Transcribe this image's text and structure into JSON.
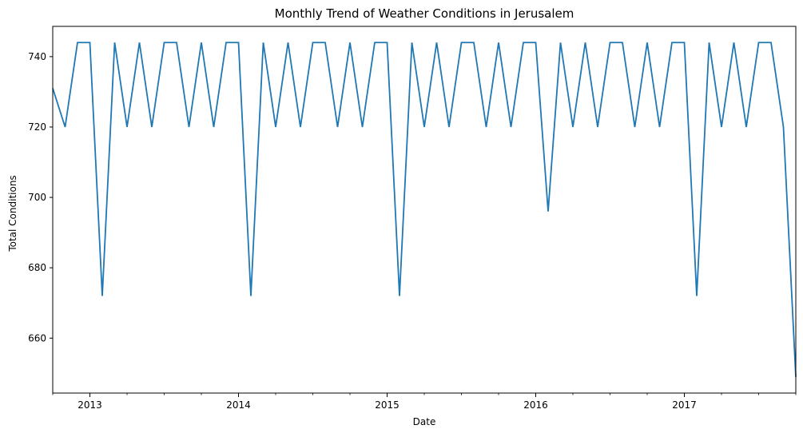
{
  "chart_data": {
    "type": "line",
    "title": "Monthly Trend of Weather Conditions in Jerusalem",
    "xlabel": "Date",
    "ylabel": "Total Conditions",
    "x_major_ticks": [
      "2013",
      "2014",
      "2015",
      "2016",
      "2017"
    ],
    "y_ticks": [
      660,
      680,
      700,
      720,
      740
    ],
    "ylim": [
      644.4,
      748.6
    ],
    "xlim": [
      "2012-10",
      "2017-10"
    ],
    "grid": false,
    "legend": "none",
    "colors": {
      "line": "#1f77b4"
    },
    "series": [
      {
        "x": [
          "2012-10",
          "2012-11",
          "2012-12",
          "2013-01",
          "2013-02",
          "2013-03",
          "2013-04",
          "2013-05",
          "2013-06",
          "2013-07",
          "2013-08",
          "2013-09",
          "2013-10",
          "2013-11",
          "2013-12",
          "2014-01",
          "2014-02",
          "2014-03",
          "2014-04",
          "2014-05",
          "2014-06",
          "2014-07",
          "2014-08",
          "2014-09",
          "2014-10",
          "2014-11",
          "2014-12",
          "2015-01",
          "2015-02",
          "2015-03",
          "2015-04",
          "2015-05",
          "2015-06",
          "2015-07",
          "2015-08",
          "2015-09",
          "2015-10",
          "2015-11",
          "2015-12",
          "2016-01",
          "2016-02",
          "2016-03",
          "2016-04",
          "2016-05",
          "2016-06",
          "2016-07",
          "2016-08",
          "2016-09",
          "2016-10",
          "2016-11",
          "2016-12",
          "2017-01",
          "2017-02",
          "2017-03",
          "2017-04",
          "2017-05",
          "2017-06",
          "2017-07",
          "2017-08",
          "2017-09",
          "2017-10"
        ],
        "values": [
          731,
          720,
          744,
          744,
          672,
          744,
          720,
          744,
          720,
          744,
          744,
          720,
          744,
          720,
          744,
          744,
          672,
          744,
          720,
          744,
          720,
          744,
          744,
          720,
          744,
          720,
          744,
          744,
          672,
          744,
          720,
          744,
          720,
          744,
          744,
          720,
          744,
          720,
          744,
          744,
          696,
          744,
          720,
          744,
          720,
          744,
          744,
          720,
          744,
          720,
          744,
          744,
          672,
          744,
          720,
          744,
          720,
          744,
          744,
          720,
          649
        ]
      }
    ]
  }
}
